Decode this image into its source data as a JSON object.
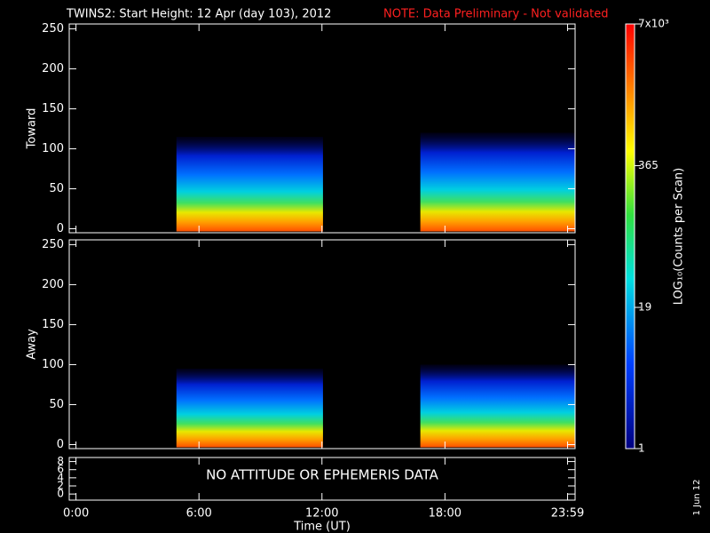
{
  "title": "TWINS2: Start Height: 12 Apr (day 103), 2012",
  "note": "NOTE: Data Preliminary - Not validated",
  "footer": "1 Jun 12",
  "chart_data": [
    {
      "type": "spectrogram",
      "ylabel": "Toward",
      "ylim": [
        -5,
        256
      ],
      "yticks": [
        0,
        50,
        100,
        150,
        200,
        250
      ],
      "xlim": [
        -0.33,
        24.35
      ],
      "blocks": [
        {
          "start": 4.9,
          "end": 12.05,
          "top": 115
        },
        {
          "start": 16.8,
          "end": 24.35,
          "top": 120
        }
      ]
    },
    {
      "type": "spectrogram",
      "ylabel": "Away",
      "ylim": [
        -5,
        256
      ],
      "yticks": [
        0,
        50,
        100,
        150,
        200,
        250
      ],
      "xlim": [
        -0.33,
        24.35
      ],
      "blocks": [
        {
          "start": 4.9,
          "end": 12.05,
          "top": 95
        },
        {
          "start": 16.8,
          "end": 24.35,
          "top": 100
        }
      ]
    },
    {
      "type": "message",
      "text": "NO ATTITUDE OR EPHEMERIS DATA",
      "ylim": [
        -1.5,
        9
      ],
      "yticks": [
        0,
        2,
        4,
        6,
        8
      ],
      "xlim": [
        -0.33,
        24.35
      ],
      "xlabel": "Time (UT)",
      "xticks": [
        {
          "value": 0,
          "label": "0:00"
        },
        {
          "value": 6,
          "label": "6:00"
        },
        {
          "value": 12,
          "label": "12:00"
        },
        {
          "value": 18,
          "label": "18:00"
        },
        {
          "value": 23.983,
          "label": "23:59"
        }
      ]
    }
  ],
  "colorbar": {
    "label": "LOG₁₀(Counts per Scan)",
    "lim": [
      1,
      7000
    ],
    "log": true,
    "ticks": [
      {
        "value": 1,
        "label": "1"
      },
      {
        "value": 19,
        "label": "19"
      },
      {
        "value": 365,
        "label": "365"
      },
      {
        "value": 7000,
        "label": "7x10³"
      }
    ]
  }
}
